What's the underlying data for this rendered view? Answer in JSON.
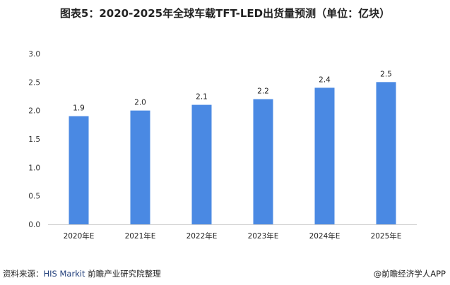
{
  "chart_data": {
    "type": "bar",
    "title": "图表5：2020-2025年全球车载TFT-LED出货量预测（单位：亿块）",
    "categories": [
      "2020年E",
      "2021年E",
      "2022年E",
      "2023年E",
      "2024年E",
      "2025年E"
    ],
    "values": [
      1.9,
      2.0,
      2.1,
      2.2,
      2.4,
      2.5
    ],
    "data_labels": [
      "1.9",
      "2.0",
      "2.1",
      "2.2",
      "2.4",
      "2.5"
    ],
    "yticks": [
      "0.0",
      "0.5",
      "1.0",
      "1.5",
      "2.0",
      "2.5",
      "3.0"
    ],
    "ylim": [
      0,
      3.0
    ],
    "xlabel": "",
    "ylabel": "",
    "grid": false,
    "bar_color": "#4a89e3"
  },
  "source": {
    "prefix": "资料来源：",
    "org": "HIS Markit",
    "suffix": " 前瞻产业研究院整理"
  },
  "credit": "@前瞻经济学人APP"
}
